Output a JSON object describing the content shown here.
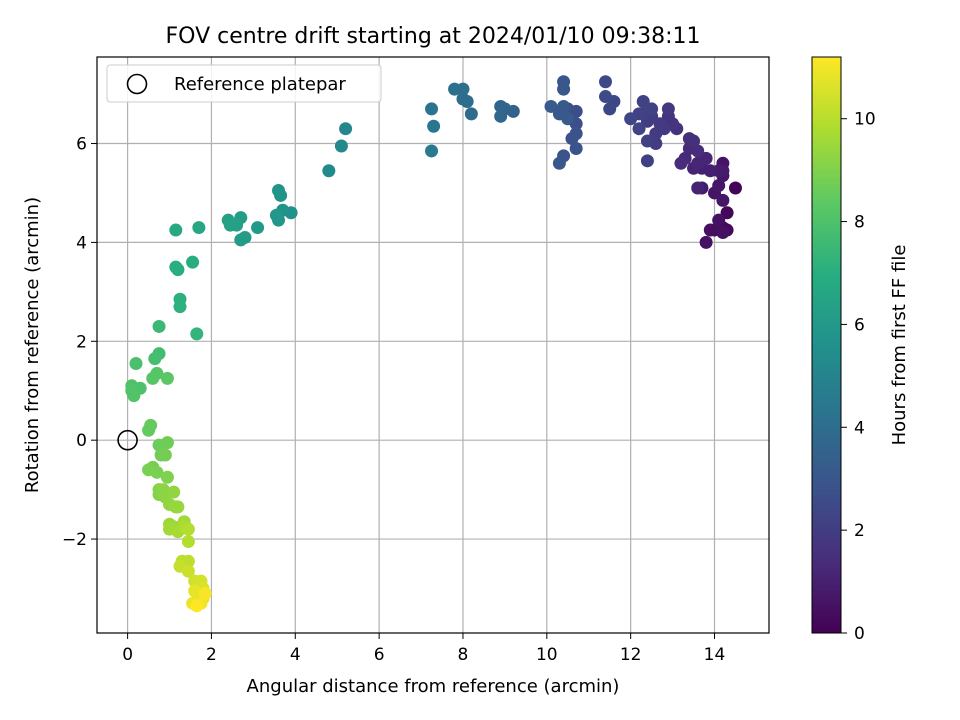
{
  "chart_data": {
    "type": "scatter",
    "title": "FOV centre drift starting at 2024/01/10 09:38:11",
    "xlabel": "Angular distance from reference (arcmin)",
    "ylabel": "Rotation from reference (arcmin)",
    "xlim": [
      -0.73,
      15.3
    ],
    "ylim": [
      -3.9,
      7.75
    ],
    "x_ticks": [
      0,
      2,
      4,
      6,
      8,
      10,
      12,
      14
    ],
    "y_ticks": [
      -2,
      0,
      2,
      4,
      6
    ],
    "x_tick_labels": [
      "0",
      "2",
      "4",
      "6",
      "8",
      "10",
      "12",
      "14"
    ],
    "y_tick_labels": [
      "−2",
      "0",
      "2",
      "4",
      "6"
    ],
    "grid": true,
    "legend": {
      "position": "top-left",
      "entries": [
        "Reference platepar"
      ]
    },
    "reference_point": {
      "x": 0,
      "y": 0,
      "label": "Reference platepar"
    },
    "colorbar": {
      "label": "Hours from first FF file",
      "colormap": "viridis",
      "range": [
        0,
        11.2
      ],
      "ticks": [
        0,
        2,
        4,
        6,
        8,
        10
      ],
      "tick_labels": [
        "0",
        "2",
        "4",
        "6",
        "8",
        "10"
      ]
    },
    "series": [
      {
        "points": [
          [
            14.5,
            5.1,
            0.1
          ],
          [
            14.3,
            4.6,
            0.2
          ],
          [
            14.3,
            4.25,
            0.3
          ],
          [
            14.2,
            4.3,
            0.3
          ],
          [
            14.0,
            4.25,
            0.4
          ],
          [
            13.9,
            4.25,
            0.4
          ],
          [
            14.1,
            4.45,
            0.5
          ],
          [
            14.2,
            4.2,
            0.5
          ],
          [
            13.8,
            4.0,
            0.5
          ],
          [
            14.2,
            5.6,
            0.6
          ],
          [
            14.0,
            5.0,
            0.6
          ],
          [
            14.1,
            5.15,
            0.7
          ],
          [
            14.2,
            5.35,
            0.7
          ],
          [
            14.2,
            4.85,
            0.7
          ],
          [
            13.7,
            5.1,
            0.8
          ],
          [
            14.2,
            5.45,
            0.8
          ],
          [
            14.1,
            5.45,
            0.9
          ],
          [
            13.9,
            5.45,
            1.0
          ],
          [
            13.7,
            5.5,
            1.0
          ],
          [
            13.6,
            5.1,
            1.1
          ],
          [
            13.5,
            5.5,
            1.1
          ],
          [
            13.8,
            5.7,
            1.2
          ],
          [
            13.6,
            5.6,
            1.2
          ],
          [
            13.4,
            5.9,
            1.3
          ],
          [
            13.3,
            5.7,
            1.3
          ],
          [
            13.2,
            5.6,
            1.4
          ],
          [
            13.6,
            5.85,
            1.4
          ],
          [
            13.5,
            6.05,
            1.5
          ],
          [
            13.4,
            6.1,
            1.5
          ],
          [
            13.1,
            6.3,
            1.6
          ],
          [
            13.0,
            6.4,
            1.7
          ],
          [
            12.9,
            6.55,
            1.7
          ],
          [
            12.9,
            6.7,
            1.8
          ],
          [
            12.8,
            6.3,
            1.8
          ],
          [
            12.7,
            6.4,
            1.9
          ],
          [
            12.6,
            6.2,
            1.9
          ],
          [
            12.6,
            6.0,
            2.0
          ],
          [
            12.5,
            6.55,
            2.0
          ],
          [
            12.4,
            6.45,
            2.0
          ],
          [
            12.3,
            6.6,
            2.1
          ],
          [
            12.4,
            6.05,
            2.1
          ],
          [
            12.4,
            5.65,
            2.1
          ],
          [
            12.2,
            6.6,
            2.2
          ],
          [
            12.3,
            6.85,
            2.2
          ],
          [
            12.5,
            6.7,
            2.2
          ],
          [
            12.0,
            6.5,
            2.3
          ],
          [
            12.2,
            6.3,
            2.3
          ],
          [
            11.5,
            6.7,
            2.4
          ],
          [
            11.6,
            6.85,
            2.4
          ],
          [
            11.4,
            7.25,
            2.5
          ],
          [
            11.4,
            6.95,
            2.5
          ],
          [
            10.7,
            6.65,
            2.6
          ],
          [
            10.6,
            6.55,
            2.6
          ],
          [
            10.5,
            6.7,
            2.7
          ],
          [
            10.7,
            6.4,
            2.7
          ],
          [
            10.7,
            6.2,
            2.8
          ],
          [
            10.6,
            6.1,
            2.8
          ],
          [
            10.7,
            5.9,
            2.9
          ],
          [
            10.4,
            5.75,
            2.9
          ],
          [
            10.3,
            5.6,
            3.0
          ],
          [
            10.4,
            7.1,
            3.0
          ],
          [
            10.4,
            7.25,
            3.0
          ],
          [
            10.3,
            6.6,
            3.1
          ],
          [
            10.4,
            6.75,
            3.1
          ],
          [
            10.5,
            6.5,
            3.2
          ],
          [
            10.1,
            6.75,
            3.2
          ],
          [
            9.2,
            6.65,
            3.5
          ],
          [
            9.0,
            6.7,
            3.6
          ],
          [
            8.9,
            6.75,
            3.6
          ],
          [
            8.9,
            6.55,
            3.7
          ],
          [
            8.2,
            6.6,
            3.9
          ],
          [
            8.1,
            6.85,
            4.0
          ],
          [
            8.0,
            6.9,
            4.0
          ],
          [
            8.0,
            7.1,
            4.1
          ],
          [
            7.8,
            7.1,
            4.1
          ],
          [
            7.25,
            6.7,
            4.3
          ],
          [
            7.3,
            6.35,
            4.4
          ],
          [
            7.25,
            5.85,
            4.5
          ],
          [
            5.2,
            6.3,
            5.1
          ],
          [
            5.1,
            5.95,
            5.2
          ],
          [
            4.8,
            5.45,
            5.3
          ],
          [
            3.9,
            4.6,
            5.6
          ],
          [
            3.7,
            4.65,
            5.7
          ],
          [
            3.65,
            4.95,
            5.8
          ],
          [
            3.6,
            5.05,
            5.8
          ],
          [
            3.55,
            4.55,
            5.9
          ],
          [
            3.6,
            4.45,
            5.9
          ],
          [
            3.1,
            4.3,
            6.0
          ],
          [
            2.8,
            4.1,
            6.1
          ],
          [
            2.7,
            4.05,
            6.1
          ],
          [
            2.7,
            4.5,
            6.2
          ],
          [
            2.6,
            4.35,
            6.3
          ],
          [
            2.4,
            4.45,
            6.3
          ],
          [
            2.45,
            4.35,
            6.4
          ],
          [
            1.7,
            4.3,
            6.6
          ],
          [
            1.15,
            4.25,
            6.7
          ],
          [
            1.55,
            3.6,
            6.9
          ],
          [
            1.2,
            3.45,
            7.0
          ],
          [
            1.15,
            3.5,
            7.0
          ],
          [
            1.25,
            2.85,
            7.1
          ],
          [
            1.25,
            2.7,
            7.1
          ],
          [
            1.65,
            2.15,
            7.3
          ],
          [
            0.75,
            2.3,
            7.5
          ],
          [
            0.75,
            1.75,
            7.7
          ],
          [
            0.65,
            1.65,
            7.8
          ],
          [
            0.2,
            1.55,
            7.9
          ],
          [
            0.3,
            1.05,
            8.0
          ],
          [
            0.1,
            1.1,
            8.0
          ],
          [
            0.15,
            0.9,
            8.1
          ],
          [
            0.1,
            1.0,
            8.1
          ],
          [
            0.7,
            1.35,
            8.2
          ],
          [
            0.6,
            1.25,
            8.2
          ],
          [
            0.95,
            1.25,
            8.3
          ],
          [
            0.55,
            0.3,
            8.5
          ],
          [
            0.5,
            0.2,
            8.5
          ],
          [
            0.75,
            -0.1,
            8.6
          ],
          [
            0.95,
            -0.05,
            8.7
          ],
          [
            0.8,
            -0.3,
            8.7
          ],
          [
            0.9,
            -0.3,
            8.8
          ],
          [
            0.6,
            -0.55,
            8.8
          ],
          [
            0.5,
            -0.6,
            8.9
          ],
          [
            0.7,
            -0.65,
            8.9
          ],
          [
            0.95,
            -0.75,
            9.0
          ],
          [
            0.75,
            -1.0,
            9.1
          ],
          [
            0.75,
            -1.1,
            9.1
          ],
          [
            0.85,
            -1.0,
            9.2
          ],
          [
            0.9,
            -1.15,
            9.2
          ],
          [
            1.0,
            -1.3,
            9.3
          ],
          [
            1.1,
            -1.05,
            9.3
          ],
          [
            1.15,
            -1.35,
            9.4
          ],
          [
            1.2,
            -1.35,
            9.4
          ],
          [
            1.0,
            -1.7,
            9.5
          ],
          [
            1.1,
            -1.75,
            9.5
          ],
          [
            1.0,
            -1.8,
            9.6
          ],
          [
            1.35,
            -1.65,
            9.6
          ],
          [
            1.2,
            -1.85,
            9.7
          ],
          [
            1.35,
            -1.75,
            9.8
          ],
          [
            1.45,
            -2.05,
            9.9
          ],
          [
            1.45,
            -1.8,
            9.9
          ],
          [
            1.3,
            -2.45,
            10.0
          ],
          [
            1.35,
            -2.5,
            10.1
          ],
          [
            1.45,
            -2.45,
            10.1
          ],
          [
            1.25,
            -2.55,
            10.2
          ],
          [
            1.45,
            -2.65,
            10.3
          ],
          [
            1.6,
            -2.85,
            10.4
          ],
          [
            1.75,
            -2.85,
            10.5
          ],
          [
            1.8,
            -3.0,
            10.6
          ],
          [
            1.7,
            -3.1,
            10.7
          ],
          [
            1.8,
            -3.2,
            10.7
          ],
          [
            1.6,
            -3.05,
            10.8
          ],
          [
            1.55,
            -3.3,
            10.9
          ],
          [
            1.75,
            -3.3,
            11.0
          ],
          [
            1.85,
            -3.1,
            11.1
          ],
          [
            1.65,
            -3.35,
            11.2
          ]
        ]
      }
    ]
  }
}
